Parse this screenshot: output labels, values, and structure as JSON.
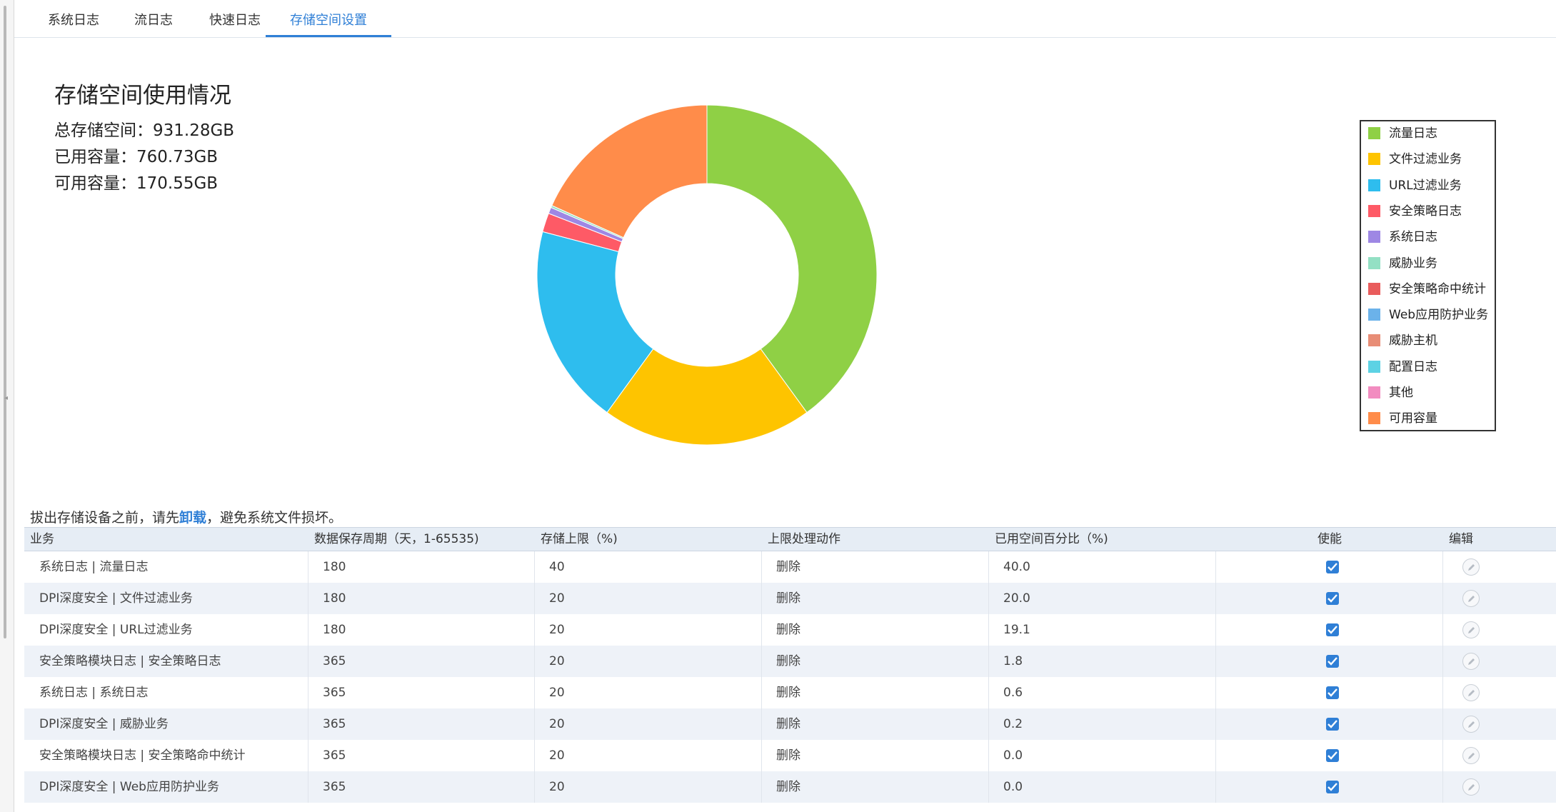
{
  "tabs": [
    {
      "label": "系统日志",
      "active": false
    },
    {
      "label": "流日志",
      "active": false
    },
    {
      "label": "快速日志",
      "active": false
    },
    {
      "label": "存储空间设置",
      "active": true
    }
  ],
  "summary": {
    "title": "存储空间使用情况",
    "total_label": "总存储空间：931.28GB",
    "used_label": "已用容量：760.73GB",
    "free_label": "可用容量：170.55GB"
  },
  "chart_data": {
    "type": "pie",
    "donut": true,
    "categories": [
      "流量日志",
      "文件过滤业务",
      "URL过滤业务",
      "安全策略日志",
      "系统日志",
      "威胁业务",
      "安全策略命中统计",
      "Web应用防护业务",
      "威胁主机",
      "配置日志",
      "其他",
      "可用容量"
    ],
    "values": [
      40.0,
      20.0,
      19.1,
      1.8,
      0.6,
      0.2,
      0.0,
      0.0,
      0.0,
      0.0,
      0.0,
      18.3
    ],
    "colors": [
      "#8fd045",
      "#fec400",
      "#2ebdee",
      "#fe5a66",
      "#9e87e4",
      "#93e0c4",
      "#e95c5c",
      "#6bb2ea",
      "#e88d76",
      "#5dd2e4",
      "#f28cc0",
      "#ff8c4a"
    ],
    "legend": "right"
  },
  "notice": {
    "prefix": "拔出存储设备之前，请先",
    "link": "卸载",
    "suffix": "，避免系统文件损坏。"
  },
  "table": {
    "columns": [
      "业务",
      "数据保存周期（天，1-65535)",
      "存储上限（%)",
      "上限处理动作",
      "已用空间百分比（%)",
      "使能",
      "编辑"
    ],
    "rows": [
      {
        "business": "系统日志 | 流量日志",
        "period": "180",
        "limit": "40",
        "action": "删除",
        "used": "40.0",
        "enabled": true
      },
      {
        "business": "DPI深度安全 | 文件过滤业务",
        "period": "180",
        "limit": "20",
        "action": "删除",
        "used": "20.0",
        "enabled": true
      },
      {
        "business": "DPI深度安全 | URL过滤业务",
        "period": "180",
        "limit": "20",
        "action": "删除",
        "used": "19.1",
        "enabled": true
      },
      {
        "business": "安全策略模块日志 | 安全策略日志",
        "period": "365",
        "limit": "20",
        "action": "删除",
        "used": "1.8",
        "enabled": true
      },
      {
        "business": "系统日志 | 系统日志",
        "period": "365",
        "limit": "20",
        "action": "删除",
        "used": "0.6",
        "enabled": true
      },
      {
        "business": "DPI深度安全 | 威胁业务",
        "period": "365",
        "limit": "20",
        "action": "删除",
        "used": "0.2",
        "enabled": true
      },
      {
        "business": "安全策略模块日志 | 安全策略命中统计",
        "period": "365",
        "limit": "20",
        "action": "删除",
        "used": "0.0",
        "enabled": true
      },
      {
        "business": "DPI深度安全 | Web应用防护业务",
        "period": "365",
        "limit": "20",
        "action": "删除",
        "used": "0.0",
        "enabled": true
      }
    ]
  }
}
